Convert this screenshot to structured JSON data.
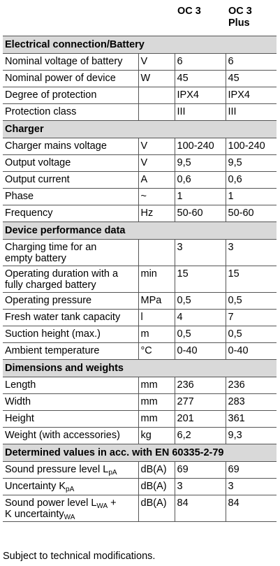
{
  "header": {
    "col1": "OC 3",
    "col2_line1": "OC 3",
    "col2_line2": "Plus"
  },
  "sections": [
    {
      "title": "Electrical connection/Battery",
      "rows": [
        {
          "label": "Nominal voltage of battery",
          "unit": "V",
          "v1": "6",
          "v2": "6"
        },
        {
          "label": "Nominal power of device",
          "unit": "W",
          "v1": "45",
          "v2": "45"
        },
        {
          "label": "Degree of protection",
          "unit": "",
          "v1": "IPX4",
          "v2": "IPX4"
        },
        {
          "label": "Protection class",
          "unit": "",
          "v1": "III",
          "v2": "III"
        }
      ]
    },
    {
      "title": "Charger",
      "rows": [
        {
          "label": "Charger mains voltage",
          "unit": "V",
          "v1": "100-240",
          "v2": "100-240"
        },
        {
          "label": "Output voltage",
          "unit": "V",
          "v1": "9,5",
          "v2": "9,5"
        },
        {
          "label": "Output current",
          "unit": "A",
          "v1": "0,6",
          "v2": "0,6"
        },
        {
          "label": "Phase",
          "unit": "~",
          "v1": "1",
          "v2": "1"
        },
        {
          "label": "Frequency",
          "unit": "Hz",
          "v1": "50-60",
          "v2": "50-60"
        }
      ]
    },
    {
      "title": "Device performance data",
      "rows": [
        {
          "label_lines": [
            "Charging time for an",
            "empty battery"
          ],
          "unit": "",
          "v1": "3",
          "v2": "3"
        },
        {
          "label_lines": [
            "Operating duration with a",
            "fully charged battery"
          ],
          "unit": "min",
          "v1": "15",
          "v2": "15"
        },
        {
          "label": "Operating pressure",
          "unit": "MPa",
          "v1": "0,5",
          "v2": "0,5"
        },
        {
          "label": "Fresh water tank capacity",
          "unit": "l",
          "v1": "4",
          "v2": "7"
        },
        {
          "label": "Suction height (max.)",
          "unit": "m",
          "v1": "0,5",
          "v2": "0,5"
        },
        {
          "label": "Ambient temperature",
          "unit": "°C",
          "v1": "0-40",
          "v2": "0-40"
        }
      ]
    },
    {
      "title": "Dimensions and weights",
      "rows": [
        {
          "label": "Length",
          "unit": "mm",
          "v1": "236",
          "v2": "236"
        },
        {
          "label": "Width",
          "unit": "mm",
          "v1": "277",
          "v2": "283"
        },
        {
          "label": "Height",
          "unit": "mm",
          "v1": "201",
          "v2": "361"
        },
        {
          "label": "Weight (with accessories)",
          "unit": "kg",
          "v1": "6,2",
          "v2": "9,3"
        }
      ]
    },
    {
      "title": "Determined values in acc. with EN 60335-2-79",
      "rows": [
        {
          "label_main": "Sound pressure level L",
          "label_sub": "pA",
          "unit": "dB(A)",
          "v1": "69",
          "v2": "69"
        },
        {
          "label_main": "Uncertainty K",
          "label_sub": "pA",
          "unit": "dB(A)",
          "v1": "3",
          "v2": "3"
        },
        {
          "label_main": "Sound power level L",
          "label_sub": "WA",
          "label_tail": " +",
          "label_line2_main": "K uncertainty",
          "label_line2_sub": "WA",
          "unit": "dB(A)",
          "v1": "84",
          "v2": "84"
        }
      ]
    }
  ],
  "footnote": "Subject to technical modifications."
}
